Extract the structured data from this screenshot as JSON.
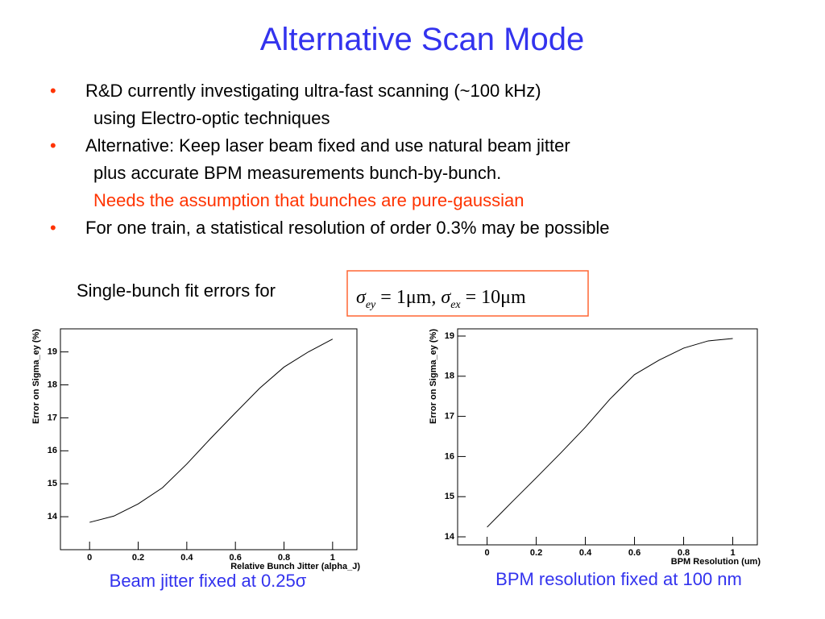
{
  "title": "Alternative Scan Mode",
  "bullets": [
    {
      "lines": [
        "R&D currently investigating ultra-fast scanning (~100 kHz)",
        "using Electro-optic techniques"
      ]
    },
    {
      "lines": [
        "Alternative: Keep laser beam fixed and use natural beam jitter",
        "plus accurate BPM measurements bunch-by-bunch."
      ],
      "note": "Needs the assumption that bunches are pure-gaussian"
    },
    {
      "lines": [
        "For one train, a statistical resolution of order 0.3% may be possible"
      ]
    }
  ],
  "fit_label": "Single-bunch fit errors for",
  "formula": [
    {
      "symbol": "σ",
      "subscript": "ey",
      "value": "= 1μm,"
    },
    {
      "symbol": "σ",
      "subscript": "ex",
      "value": "= 10μm"
    }
  ],
  "captions": [
    "Beam jitter fixed at 0.25σ",
    "BPM resolution fixed at 100 nm"
  ],
  "chart_data": [
    {
      "type": "line",
      "x_label": "Relative Bunch Jitter (alpha_J)",
      "y_label": "Error on Sigma_ey (%)",
      "color": "#000000",
      "x": [
        0,
        0.1,
        0.2,
        0.3,
        0.4,
        0.5,
        0.6,
        0.7,
        0.8,
        0.9,
        1
      ],
      "values": [
        13.83,
        14.02,
        14.39,
        14.88,
        15.6,
        16.39,
        17.15,
        17.9,
        18.54,
        19.0,
        19.39
      ],
      "xlim": [
        -0.12,
        1.1
      ],
      "ylim": [
        13.0,
        19.7
      ],
      "xticks": [
        0,
        0.2,
        0.4,
        0.6,
        0.8,
        1
      ],
      "yticks": [
        14,
        15,
        16,
        17,
        18,
        19
      ]
    },
    {
      "type": "line",
      "x_label": "BPM Resolution (um)",
      "y_label": "Error on Sigma_ey (%)",
      "color": "#000000",
      "x": [
        0,
        0.1,
        0.2,
        0.3,
        0.4,
        0.5,
        0.6,
        0.7,
        0.8,
        0.9,
        1
      ],
      "values": [
        14.24,
        14.86,
        15.47,
        16.09,
        16.73,
        17.43,
        18.04,
        18.4,
        18.7,
        18.88,
        18.94
      ],
      "xlim": [
        -0.12,
        1.1
      ],
      "ylim": [
        13.8,
        19.18
      ],
      "xticks": [
        0,
        0.2,
        0.4,
        0.6,
        0.8,
        1
      ],
      "yticks": [
        14,
        15,
        16,
        17,
        18,
        19
      ]
    }
  ]
}
